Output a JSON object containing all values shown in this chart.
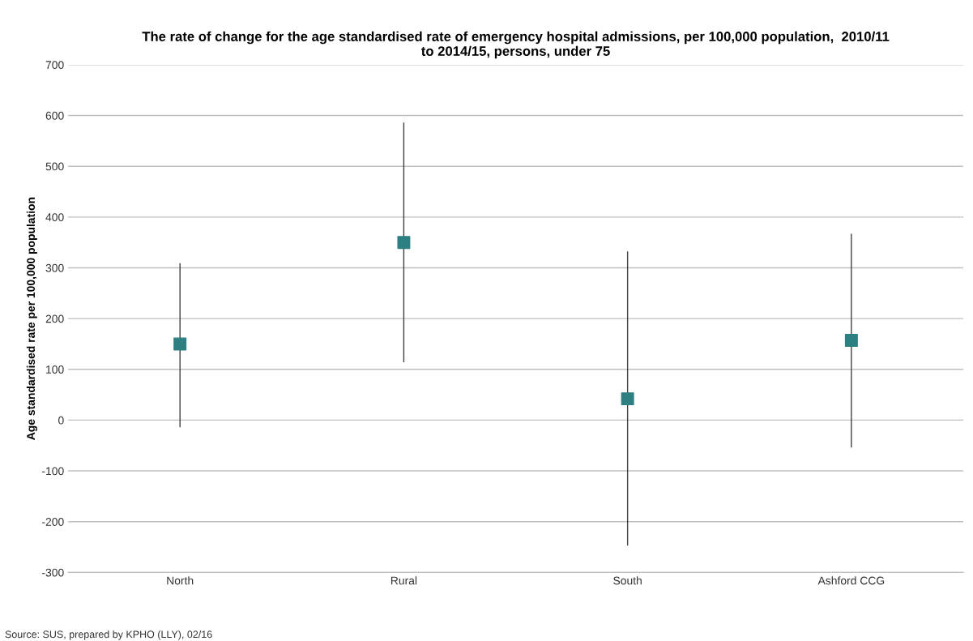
{
  "chart_data": {
    "type": "scatter",
    "title": "The rate of change for the age standardised rate of emergency hospital admissions, per 100,000 population,  2010/11\nto 2014/15, persons, under 75",
    "ylabel": "Age standardised rate per 100,000 population",
    "categories": [
      "North",
      "Rural",
      "South",
      "Ashford CCG"
    ],
    "values": [
      150,
      350,
      42,
      157
    ],
    "errors": [
      [
        -13,
        308
      ],
      [
        115,
        585
      ],
      [
        -246,
        331
      ],
      [
        -53,
        366
      ]
    ],
    "color": "#2e7f82",
    "marker": "square",
    "ylim": [
      -300,
      700
    ],
    "yticks": [
      -300,
      -200,
      -100,
      0,
      100,
      200,
      300,
      400,
      500,
      600,
      700
    ],
    "grid": "y",
    "annotations": [
      "Source: SUS, prepared by KPHO (LLY), 02/16"
    ]
  }
}
